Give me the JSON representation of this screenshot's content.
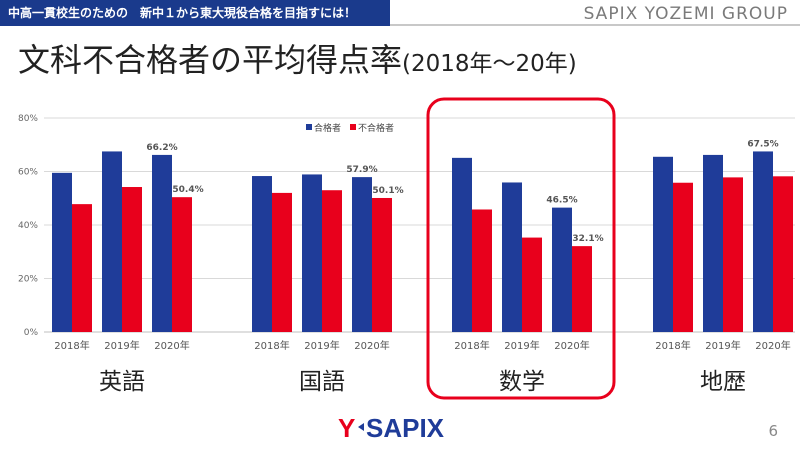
{
  "header": {
    "banner": "中高一貫校生のための　新中１から東大現役合格を目指すには！",
    "group_name": "SAPIX YOZEMI GROUP"
  },
  "title": {
    "main": "文科不合格者の平均得点率",
    "sub": "(2018年～20年)"
  },
  "footer": {
    "logo_left": "Y",
    "logo_right": "SAPIX",
    "page_number": "6"
  },
  "colors": {
    "pass": "#1f3c99",
    "fail": "#e8001c",
    "highlight": "#e8001c",
    "grid": "#d9d9d9"
  },
  "chart_data": {
    "type": "bar",
    "ylim": [
      0,
      80
    ],
    "yticks": [
      "0%",
      "20%",
      "40%",
      "60%",
      "80%"
    ],
    "grid": true,
    "legend": "top",
    "series": [
      {
        "name": "合格者"
      },
      {
        "name": "不合格者"
      }
    ],
    "groups": [
      {
        "label": "英語",
        "years": [
          "2018年",
          "2019年",
          "2020年"
        ],
        "pass": [
          59.5,
          67.5,
          66.2
        ],
        "fail": [
          47.8,
          54.2,
          50.4
        ],
        "labels": [
          {
            "year": 2,
            "series": "pass",
            "text": "66.2%"
          },
          {
            "year": 2,
            "series": "fail",
            "text": "50.4%"
          }
        ]
      },
      {
        "label": "国語",
        "years": [
          "2018年",
          "2019年",
          "2020年"
        ],
        "pass": [
          58.3,
          58.9,
          57.9
        ],
        "fail": [
          52.0,
          53.0,
          50.1
        ],
        "labels": [
          {
            "year": 2,
            "series": "pass",
            "text": "57.9%"
          },
          {
            "year": 2,
            "series": "fail",
            "text": "50.1%"
          }
        ]
      },
      {
        "label": "数学",
        "years": [
          "2018年",
          "2019年",
          "2020年"
        ],
        "pass": [
          65.1,
          55.9,
          46.5
        ],
        "fail": [
          45.8,
          35.3,
          32.1
        ],
        "labels": [
          {
            "year": 2,
            "series": "pass",
            "text": "46.5%"
          },
          {
            "year": 2,
            "series": "fail",
            "text": "32.1%"
          }
        ],
        "highlight": true
      },
      {
        "label": "地歴",
        "years": [
          "2018年",
          "2019年",
          "2020年"
        ],
        "pass": [
          65.5,
          66.2,
          67.5
        ],
        "fail": [
          55.8,
          57.8,
          58.2
        ],
        "labels": [
          {
            "year": 2,
            "series": "pass",
            "text": "67.5%"
          }
        ]
      }
    ]
  }
}
